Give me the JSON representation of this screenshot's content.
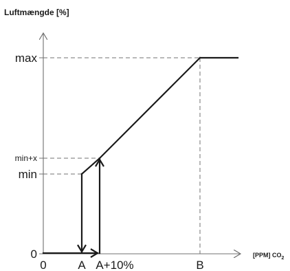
{
  "title": "Luftmængde [%]",
  "x_axis": {
    "unit_label": "[PPM] CO",
    "unit_subscript": "2",
    "ticks": [
      "0",
      "A",
      "A+10%",
      "B"
    ]
  },
  "y_axis": {
    "ticks": [
      "0",
      "min",
      "min+x",
      "max"
    ]
  },
  "colors": {
    "curve": "#1a1a1a",
    "axis": "#707070",
    "guide": "#707070"
  }
}
